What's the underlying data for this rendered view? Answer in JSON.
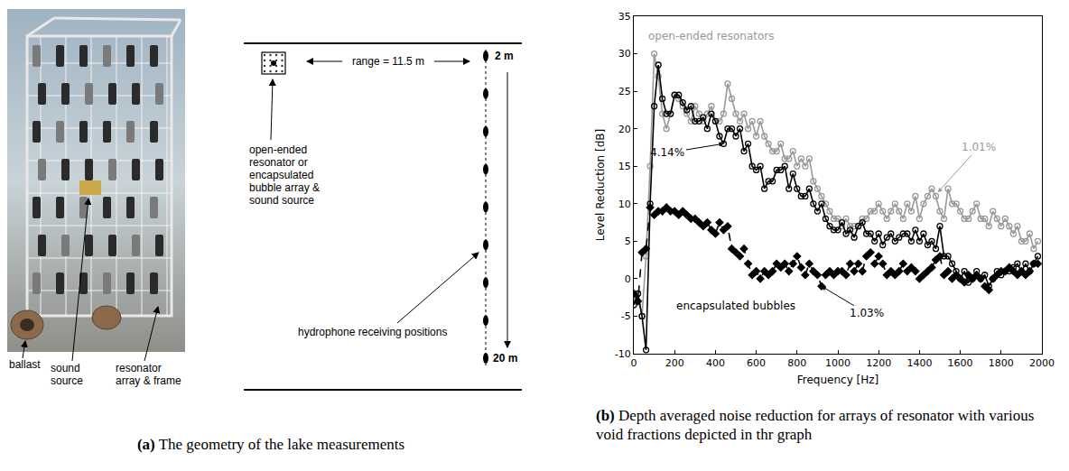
{
  "figure": {
    "panel_a": {
      "caption_label": "(a)",
      "caption": "The geometry of the lake measurements",
      "photo_labels": [
        "ballast",
        "sound source",
        "resonator array & frame"
      ],
      "diagram": {
        "range_label": "range = 11.5 m",
        "top_depth": "2 m",
        "bottom_depth": "20 m",
        "array_label": [
          "open-ended",
          "resonator or",
          "encapsulated",
          "bubble array &",
          "sound source"
        ],
        "receiver_label": "hydrophone receiving positions"
      }
    },
    "panel_b": {
      "caption_label": "(b)",
      "caption": "Depth averaged noise reduction for arrays of resonator with various void fractions depicted in thr graph"
    }
  },
  "chart_data": {
    "type": "line",
    "x_label": "Frequency [Hz]",
    "y_label": "Level Reduction [dB]",
    "xlim": [
      0,
      2000
    ],
    "xticks": [
      0,
      200,
      400,
      600,
      800,
      1000,
      1200,
      1400,
      1600,
      1800,
      2000
    ],
    "ylim": [
      -10,
      35
    ],
    "yticks": [
      -10,
      -5,
      0,
      5,
      10,
      15,
      20,
      25,
      30,
      35
    ],
    "grid": false,
    "x": [
      0,
      20,
      40,
      60,
      80,
      100,
      120,
      140,
      160,
      180,
      200,
      220,
      240,
      260,
      280,
      300,
      320,
      340,
      360,
      380,
      400,
      420,
      440,
      460,
      480,
      500,
      520,
      540,
      560,
      580,
      600,
      620,
      640,
      660,
      680,
      700,
      720,
      740,
      760,
      780,
      800,
      820,
      840,
      860,
      880,
      900,
      920,
      940,
      960,
      980,
      1000,
      1020,
      1040,
      1060,
      1080,
      1100,
      1120,
      1140,
      1160,
      1180,
      1200,
      1220,
      1240,
      1260,
      1280,
      1300,
      1320,
      1340,
      1360,
      1380,
      1400,
      1420,
      1440,
      1460,
      1480,
      1500,
      1520,
      1540,
      1560,
      1580,
      1600,
      1620,
      1640,
      1660,
      1680,
      1700,
      1720,
      1740,
      1760,
      1780,
      1800,
      1820,
      1840,
      1860,
      1880,
      1900,
      1920,
      1940,
      1960,
      1980
    ],
    "series": [
      {
        "name": "1.01%",
        "color": "#999999",
        "marker": "circle-open",
        "line_style": "solid",
        "values": [
          -3,
          -2,
          -5,
          3,
          15,
          30,
          27,
          22,
          20,
          22,
          24.5,
          24,
          23,
          22,
          21,
          23,
          22,
          21,
          22,
          23,
          21,
          21,
          22,
          26,
          24,
          22,
          21,
          22,
          20,
          21,
          19,
          21,
          19,
          18,
          17,
          17,
          18,
          16,
          16,
          17,
          15,
          16,
          15,
          16,
          13,
          12,
          11,
          10,
          9,
          8,
          8,
          7,
          8,
          7,
          7,
          7,
          8,
          8,
          9,
          9,
          10,
          9,
          8,
          9,
          10,
          9,
          8,
          10,
          9,
          11,
          8,
          10,
          11,
          12,
          11,
          9,
          8,
          12,
          10,
          10,
          9,
          8,
          8,
          9,
          10,
          8,
          8,
          7,
          9,
          8,
          7,
          8,
          7,
          6,
          7,
          5,
          5,
          6,
          4,
          5
        ]
      },
      {
        "name": "4.14%",
        "color": "#000000",
        "marker": "circle-open",
        "line_style": "solid",
        "values": [
          -3.5,
          -2,
          -5,
          -9.5,
          10,
          23,
          28.5,
          24,
          22,
          22,
          24.5,
          24.5,
          23.5,
          22.5,
          23,
          21,
          21,
          21.5,
          20,
          22,
          21,
          19,
          18,
          20,
          20,
          19,
          20,
          17,
          18,
          15,
          14.5,
          15,
          12,
          13,
          13,
          14.5,
          14.5,
          15,
          12,
          14,
          12,
          11,
          11,
          12,
          10,
          9,
          10,
          8,
          7,
          6.5,
          6.5,
          7.5,
          6,
          6.5,
          5.5,
          7,
          7.5,
          6,
          6,
          5,
          6,
          4.5,
          5.5,
          6,
          5,
          5.5,
          6,
          6,
          5,
          6.5,
          5,
          6,
          4.5,
          5,
          4,
          7,
          3,
          3,
          2,
          1,
          0,
          1,
          -0.5,
          0,
          1,
          0,
          0.5,
          -1,
          0,
          1,
          0.5,
          1,
          1,
          1.5,
          2,
          1,
          2,
          1,
          2,
          3
        ]
      },
      {
        "name": "1.03%",
        "color": "#000000",
        "marker": "diamond",
        "line_style": "dash",
        "values": [
          -2,
          -3,
          3.5,
          4,
          9.5,
          8.5,
          9,
          9,
          9.5,
          9,
          9,
          8.5,
          9,
          8.5,
          8,
          8,
          7.5,
          7,
          7.5,
          6.5,
          6,
          7.5,
          6.5,
          7,
          4,
          3.5,
          3,
          4,
          2,
          0.5,
          1,
          0,
          1,
          0.5,
          1,
          2,
          1.5,
          2,
          1,
          2,
          3,
          1.5,
          0.5,
          2,
          1,
          0.5,
          -1,
          0.5,
          1,
          0.5,
          1,
          1,
          0.5,
          2,
          1,
          2,
          1,
          3,
          3.5,
          2,
          3,
          2,
          0.5,
          1,
          0.5,
          1,
          2,
          1,
          1.5,
          1,
          0,
          0.5,
          1,
          1.5,
          2.5,
          3,
          0.5,
          1,
          0,
          0.5,
          0,
          -0.5,
          0.5,
          0,
          0.5,
          0,
          -1,
          -1.5,
          0,
          0.5,
          1,
          1,
          1.5,
          1,
          0.5,
          1,
          0.5,
          1,
          2,
          2
        ]
      }
    ],
    "annotations": [
      {
        "text": "open-ended resonators",
        "color": "#999999"
      },
      {
        "text": "1.01%",
        "color": "#999999"
      },
      {
        "text": "4.14%",
        "color": "#000000"
      },
      {
        "text": "encapsulated bubbles",
        "color": "#000000"
      },
      {
        "text": "1.03%",
        "color": "#000000"
      }
    ]
  }
}
